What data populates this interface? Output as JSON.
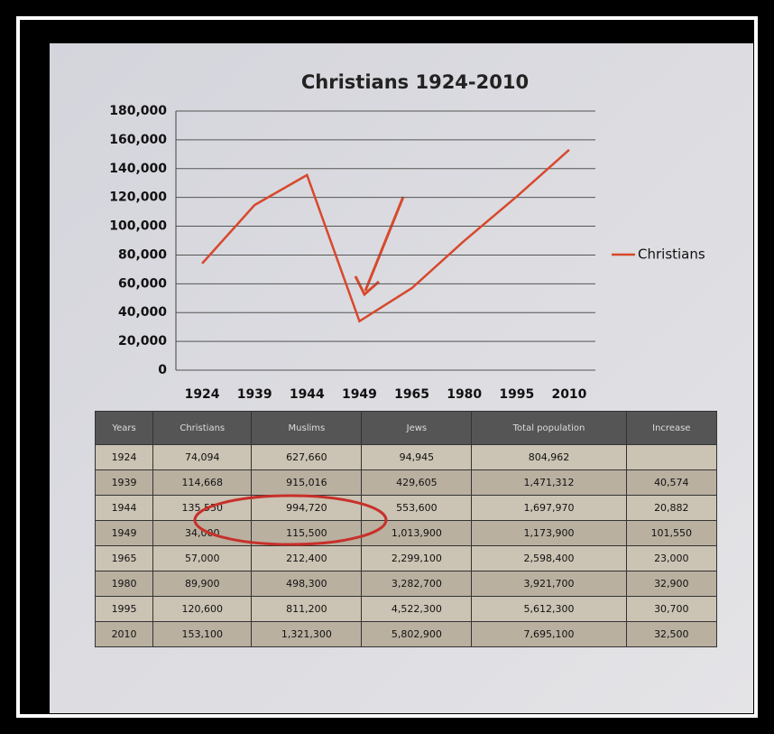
{
  "chart_data": {
    "type": "line",
    "title": "Christians 1924-2010",
    "categories": [
      "1924",
      "1939",
      "1944",
      "1949",
      "1965",
      "1980",
      "1995",
      "2010"
    ],
    "series": [
      {
        "name": "Christians",
        "color": "#d8482c",
        "values": [
          74094,
          114668,
          135550,
          34000,
          57000,
          89900,
          120600,
          153100
        ]
      }
    ],
    "ylim": [
      0,
      180000
    ],
    "yticks": [
      0,
      {
        "value": 20000,
        "label": "20,000"
      },
      {
        "value": 40000,
        "label": "40,000"
      },
      {
        "value": 60000,
        "label": "60,000"
      },
      {
        "value": 80000,
        "label": "80,000"
      },
      {
        "value": 100000,
        "label": "100,000"
      },
      {
        "value": 120000,
        "label": "120,000"
      },
      {
        "value": 140000,
        "label": "140,000"
      },
      {
        "value": 160000,
        "label": "160,000"
      },
      {
        "value": 180000,
        "label": "180,000"
      }
    ],
    "grid": true,
    "legend": "right"
  },
  "table": {
    "header": [
      "Years",
      "Christians",
      "Muslims",
      "Jews",
      "Total population",
      "Increase"
    ],
    "rows": [
      [
        "1924",
        "74,094",
        "627,660",
        "94,945",
        "804,962",
        null
      ],
      [
        "1939",
        "114,668",
        "915,016",
        "429,605",
        "1,471,312",
        "40,574"
      ],
      [
        "1944",
        "135,550",
        "994,720",
        "553,600",
        "1,697,970",
        "20,882"
      ],
      [
        "1949",
        "34,000",
        "115,500",
        "1,013,900",
        "1,173,900",
        "101,550"
      ],
      [
        "1965",
        "57,000",
        "212,400",
        "2,299,100",
        "2,598,400",
        "23,000"
      ],
      [
        "1980",
        "89,900",
        "498,300",
        "3,282,700",
        "3,921,700",
        "32,900"
      ],
      [
        "1995",
        "120,600",
        "811,200",
        "4,522,300",
        "5,612,300",
        "30,700"
      ],
      [
        "2010",
        "153,100",
        "1,321,300",
        "5,802,900",
        "7,695,100",
        "32,500"
      ]
    ]
  }
}
